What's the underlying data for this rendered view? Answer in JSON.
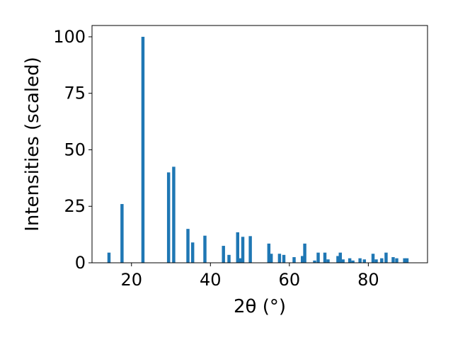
{
  "chart_data": {
    "type": "bar",
    "title": "",
    "xlabel": "2θ (°)",
    "ylabel": "Intensities (scaled)",
    "xlim": [
      10,
      95
    ],
    "ylim": [
      0,
      105
    ],
    "xticks": [
      20,
      40,
      60,
      80
    ],
    "yticks": [
      0,
      25,
      50,
      75,
      100
    ],
    "bar_width": 0.8,
    "grid": false,
    "bar_color": "#1f77b4",
    "x": [
      14.3,
      17.6,
      22.9,
      29.4,
      30.7,
      34.3,
      35.5,
      38.6,
      43.3,
      44.7,
      46.9,
      47.6,
      48.2,
      50.1,
      54.8,
      55.4,
      57.5,
      58.6,
      61.2,
      63.3,
      63.9,
      66.4,
      67.3,
      69.0,
      69.8,
      72.3,
      72.9,
      73.6,
      75.3,
      76.1,
      77.9,
      79.0,
      81.2,
      82.0,
      83.4,
      84.5,
      86.3,
      87.2,
      89.2,
      89.8
    ],
    "values": [
      4.5,
      26.0,
      100.0,
      40.0,
      42.5,
      15.0,
      9.0,
      12.0,
      7.5,
      3.5,
      13.5,
      2.0,
      11.5,
      11.8,
      8.5,
      4.0,
      4.0,
      3.5,
      2.5,
      3.0,
      8.5,
      1.0,
      4.5,
      4.5,
      1.5,
      3.0,
      4.5,
      1.5,
      2.0,
      1.0,
      2.0,
      1.5,
      4.0,
      1.5,
      2.0,
      4.5,
      2.5,
      2.0,
      2.0,
      2.0
    ]
  }
}
